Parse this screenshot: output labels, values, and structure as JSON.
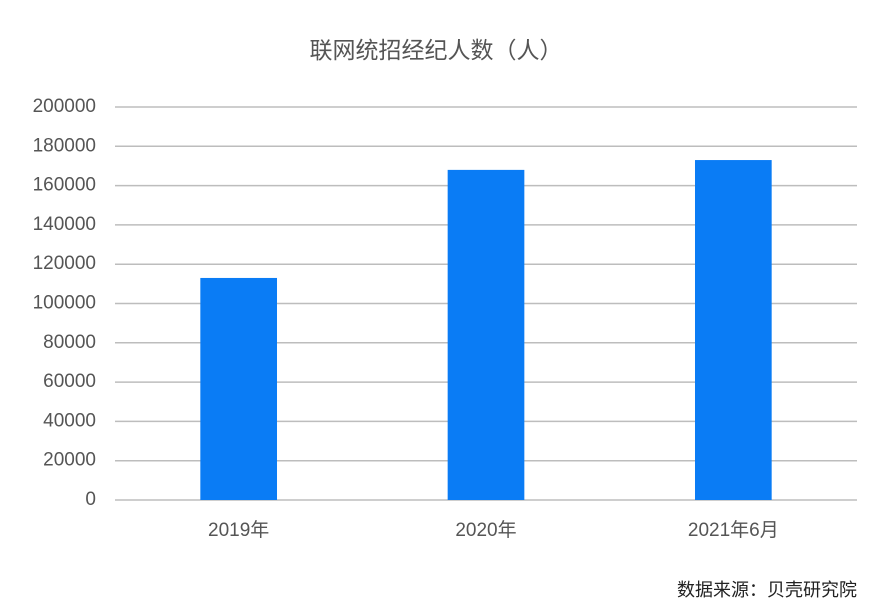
{
  "chart_data": {
    "type": "bar",
    "title": "联网统招经纪人数（人）",
    "categories": [
      "2019年",
      "2020年",
      "2021年6月"
    ],
    "values": [
      113000,
      168000,
      173000
    ],
    "color": "#0a7cf5",
    "ylim": [
      0,
      200000
    ],
    "yticks": [
      0,
      20000,
      40000,
      60000,
      80000,
      100000,
      120000,
      140000,
      160000,
      180000,
      200000
    ],
    "grid": true,
    "source": "数据来源：贝壳研究院"
  }
}
